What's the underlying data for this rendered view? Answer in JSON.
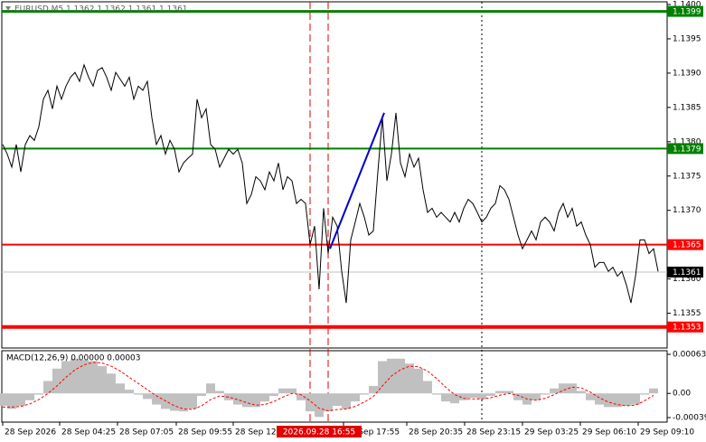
{
  "chart_data": [
    {
      "type": "line",
      "title": "EURUSD,M5  1.1362 1.1362 1.1361 1.1361",
      "xlim": [
        0,
        145
      ],
      "ylim": [
        1.135,
        1.14
      ],
      "yticks": [
        {
          "value": 1.14,
          "label": "1.1400"
        },
        1.1395,
        {
          "value": 1.139,
          "label": "1.1390"
        },
        1.1385,
        {
          "value": 1.138,
          "label": "1.1380"
        },
        1.1375,
        {
          "value": 1.137,
          "label": "1.1370"
        },
        1.1365,
        {
          "value": 1.136,
          "label": "1.1360"
        },
        1.1355
      ],
      "xticks": [
        {
          "value": 0,
          "label": "28 Sep 2026"
        },
        {
          "value": 12.6,
          "label": "28 Sep 04:25"
        },
        {
          "value": 25.4,
          "label": "28 Sep 07:05"
        },
        {
          "value": 38.4,
          "label": "28 Sep 09:55"
        },
        {
          "value": 51,
          "label": "28 Sep 12:45"
        },
        {
          "value": 75.4,
          "label": "28 Sep 17:55"
        },
        {
          "value": 89.4,
          "label": "28 Sep 20:35"
        },
        {
          "value": 102.2,
          "label": "28 Sep 23:15"
        },
        {
          "value": 115,
          "label": "29 Sep 03:25"
        },
        {
          "value": 127.8,
          "label": "29 Sep 06:10"
        },
        {
          "value": 140.6,
          "label": "29 Sep 09:10"
        }
      ],
      "series": [
        {
          "color": "#000000",
          "values": [
            1.13796,
            1.13782,
            1.13763,
            1.13796,
            1.13756,
            1.13796,
            1.13809,
            1.13802,
            1.13822,
            1.13862,
            1.13875,
            1.13848,
            1.13881,
            1.13862,
            1.13881,
            1.13894,
            1.13901,
            1.13888,
            1.13912,
            1.13894,
            1.13881,
            1.13904,
            1.13908,
            1.13894,
            1.13875,
            1.13901,
            1.13891,
            1.13881,
            1.13894,
            1.13862,
            1.13881,
            1.13875,
            1.13888,
            1.13835,
            1.13796,
            1.13809,
            1.13782,
            1.13802,
            1.13789,
            1.13756,
            1.13769,
            1.13776,
            1.13782,
            1.13862,
            1.13835,
            1.13848,
            1.13796,
            1.13789,
            1.13763,
            1.13776,
            1.13789,
            1.13782,
            1.13789,
            1.13769,
            1.1371,
            1.13723,
            1.13749,
            1.13743,
            1.1373,
            1.13756,
            1.13743,
            1.13769,
            1.1373,
            1.13749,
            1.13743,
            1.1371,
            1.13716,
            1.1371,
            1.1365,
            1.13677,
            1.13585,
            1.13703,
            1.13637,
            1.1369,
            1.13677,
            1.13611,
            1.13565,
            1.13657,
            1.13683,
            1.1371,
            1.1369,
            1.13664,
            1.1367,
            1.13756,
            1.13835,
            1.13743,
            1.13782,
            1.13842,
            1.13769,
            1.13749,
            1.13782,
            1.13763,
            1.13776,
            1.1373,
            1.13697,
            1.13703,
            1.1369,
            1.13697,
            1.1369,
            1.13683,
            1.13697,
            1.13683,
            1.13703,
            1.13716,
            1.1371,
            1.13697,
            1.13683,
            1.1369,
            1.13703,
            1.1371,
            1.13736,
            1.1373,
            1.13716,
            1.1369,
            1.13664,
            1.13644,
            1.13657,
            1.1367,
            1.13657,
            1.13683,
            1.1369,
            1.13683,
            1.1367,
            1.13697,
            1.1371,
            1.1369,
            1.13703,
            1.13677,
            1.13683,
            1.13664,
            1.1365,
            1.13617,
            1.13624,
            1.13624,
            1.13611,
            1.13617,
            1.13604,
            1.13611,
            1.13591,
            1.13565,
            1.13604,
            1.13657,
            1.13657,
            1.13637,
            1.13644,
            1.13611
          ]
        }
      ],
      "levels": [
        {
          "value": 1.1399,
          "color": "#008000",
          "width": 3
        },
        {
          "value": 1.1379,
          "color": "#008000",
          "width": 2
        },
        {
          "value": 1.1365,
          "color": "#ff0000",
          "width": 2
        },
        {
          "value": 1.1353,
          "color": "#ff0000",
          "width": 4
        },
        {
          "value": 1.1361,
          "color": "#c0c0c0",
          "width": 1,
          "label_color": "#000000"
        }
      ],
      "vlines": [
        {
          "x": 68,
          "color": "#e00000",
          "style": "dashed"
        },
        {
          "x": 72,
          "color": "#e00000",
          "style": "dashed"
        },
        {
          "x": 106,
          "color": "#000000",
          "style": "dotted"
        }
      ],
      "trendline": {
        "x": [
          72.4,
          84.4
        ],
        "y": [
          1.13644,
          1.13842
        ],
        "color": "#0000cd"
      },
      "cursor_label": "2026.09.28 16:55"
    },
    {
      "type": "macd",
      "title": "MACD(12,26,9) 0.00000 0.00003",
      "xlim": [
        0,
        72.5
      ],
      "ylim": [
        -0.00039,
        0.00063
      ],
      "yticks": [
        0.00063,
        {
          "value": 0,
          "label": "0.00"
        },
        -0.00039
      ],
      "series": [
        {
          "style": "bars",
          "color": "#c0c0c0",
          "values": [
            -0.0002,
            -0.00025,
            -0.0002,
            -0.00011,
            -2e-05,
            0.0002,
            0.0004,
            0.00052,
            0.00056,
            0.00054,
            0.00052,
            0.00044,
            0.00032,
            0.00016,
            6e-05,
            -2e-05,
            -9e-05,
            -0.00018,
            -0.00025,
            -0.00028,
            -0.00029,
            -0.00025,
            -4e-05,
            0.00016,
            4e-05,
            -0.00011,
            -0.00018,
            -0.00022,
            -0.00022,
            -0.00013,
            -4e-05,
            8e-05,
            8e-05,
            -0.00011,
            -0.00029,
            -0.00038,
            -0.00029,
            -0.0002,
            -0.00025,
            -0.00013,
            -2e-05,
            0.00012,
            0.00052,
            0.00056,
            0.00056,
            0.00048,
            0.0004,
            0.0002,
            -2e-05,
            -0.00013,
            -0.00016,
            -0.00011,
            -7e-05,
            -9e-05,
            -4e-05,
            4e-05,
            4e-05,
            -0.00011,
            -0.00018,
            -0.00011,
            -2e-05,
            8e-05,
            0.00016,
            0.00016,
            4e-05,
            -0.00011,
            -0.00018,
            -0.00022,
            -0.00022,
            -0.0002,
            -0.00018,
            -2e-05,
            8e-05
          ]
        },
        {
          "style": "dashed",
          "color": "#ff0000",
          "values": [
            -0.00022,
            -0.00022,
            -0.00021,
            -0.00017,
            -0.0001,
            0.0,
            0.00012,
            0.00026,
            0.00038,
            0.00046,
            0.0005,
            0.00049,
            0.00044,
            0.00036,
            0.00026,
            0.00016,
            6e-05,
            -4e-05,
            -0.00012,
            -0.0002,
            -0.00025,
            -0.00026,
            -0.0002,
            -0.0001,
            -4e-05,
            -6e-05,
            -0.0001,
            -0.00015,
            -0.00019,
            -0.00018,
            -0.00013,
            -6e-05,
            0.0,
            -2e-05,
            -0.00012,
            -0.00024,
            -0.00028,
            -0.00026,
            -0.00025,
            -0.00021,
            -0.00014,
            -5e-05,
            0.00012,
            0.00028,
            0.00038,
            0.00044,
            0.00043,
            0.00036,
            0.00024,
            0.0001,
            -2e-05,
            -8e-05,
            -9e-05,
            -9e-05,
            -7e-05,
            -3e-05,
            0.0,
            -3e-05,
            -9e-05,
            -0.00011,
            -8e-05,
            -2e-05,
            5e-05,
            0.0001,
            9e-05,
            2e-05,
            -7e-05,
            -0.00014,
            -0.00018,
            -0.0002,
            -0.00019,
            -0.00012,
            -3e-05
          ]
        }
      ]
    }
  ]
}
